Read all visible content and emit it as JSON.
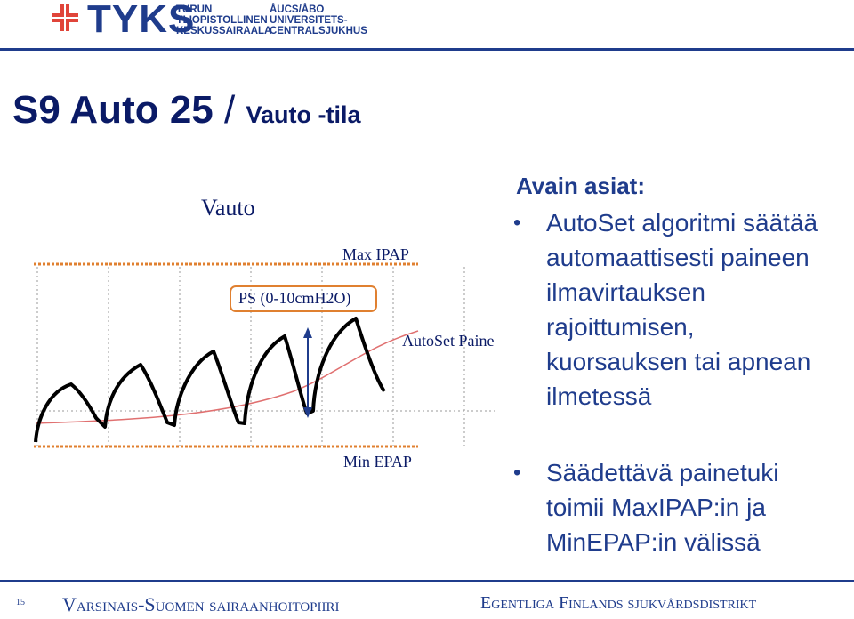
{
  "header": {
    "logo_wordmark": "TYKS",
    "logo_line1_fi": "TURUN",
    "logo_line2_fi": "YLIOPISTOLLINEN",
    "logo_line3_fi": "KESKUSSAIRAALA",
    "logo_line1_sv": "ÅUCS/ÅBO",
    "logo_line2_sv": "UNIVERSITETS-",
    "logo_line3_sv": "CENTRALSJUKHUS",
    "brand_color": "#1f3c8c",
    "cross_color": "#e0453a"
  },
  "title": {
    "part1": "S9 Auto 25",
    "separator": " / ",
    "part2": "Vauto -tila"
  },
  "diagram": {
    "mode_label": "Vauto",
    "max_ipap_label": "Max IPAP",
    "ps_label": "PS (0-10cmH2O)",
    "autoset_label": "AutoSet Paine",
    "min_epap_label": "Min EPAP",
    "waveform_color": "#000000",
    "autoset_curve_color": "#e07070",
    "dotted_line_color": "#e08030",
    "arrow_color": "#1f3c8c"
  },
  "key_points": {
    "heading": "Avain asiat:",
    "bullets": [
      {
        "symbol": "•",
        "text": "AutoSet algoritmi säätää automaattisesti paineen ilmavirtauksen rajoittumisen, kuorsauksen tai apnean ilmetessä"
      }
    ]
  },
  "second_points": {
    "bullets": [
      {
        "symbol": "•",
        "text": "Säädettävä painetuki toimii MaxIPAP:in ja MinEPAP:in välissä"
      }
    ]
  },
  "footer": {
    "page_number": "15",
    "left_text": "Varsinais-Suomen sairaanhoitopiiri",
    "right_text": "Egentliga Finlands sjukvårdsdistrikt"
  }
}
